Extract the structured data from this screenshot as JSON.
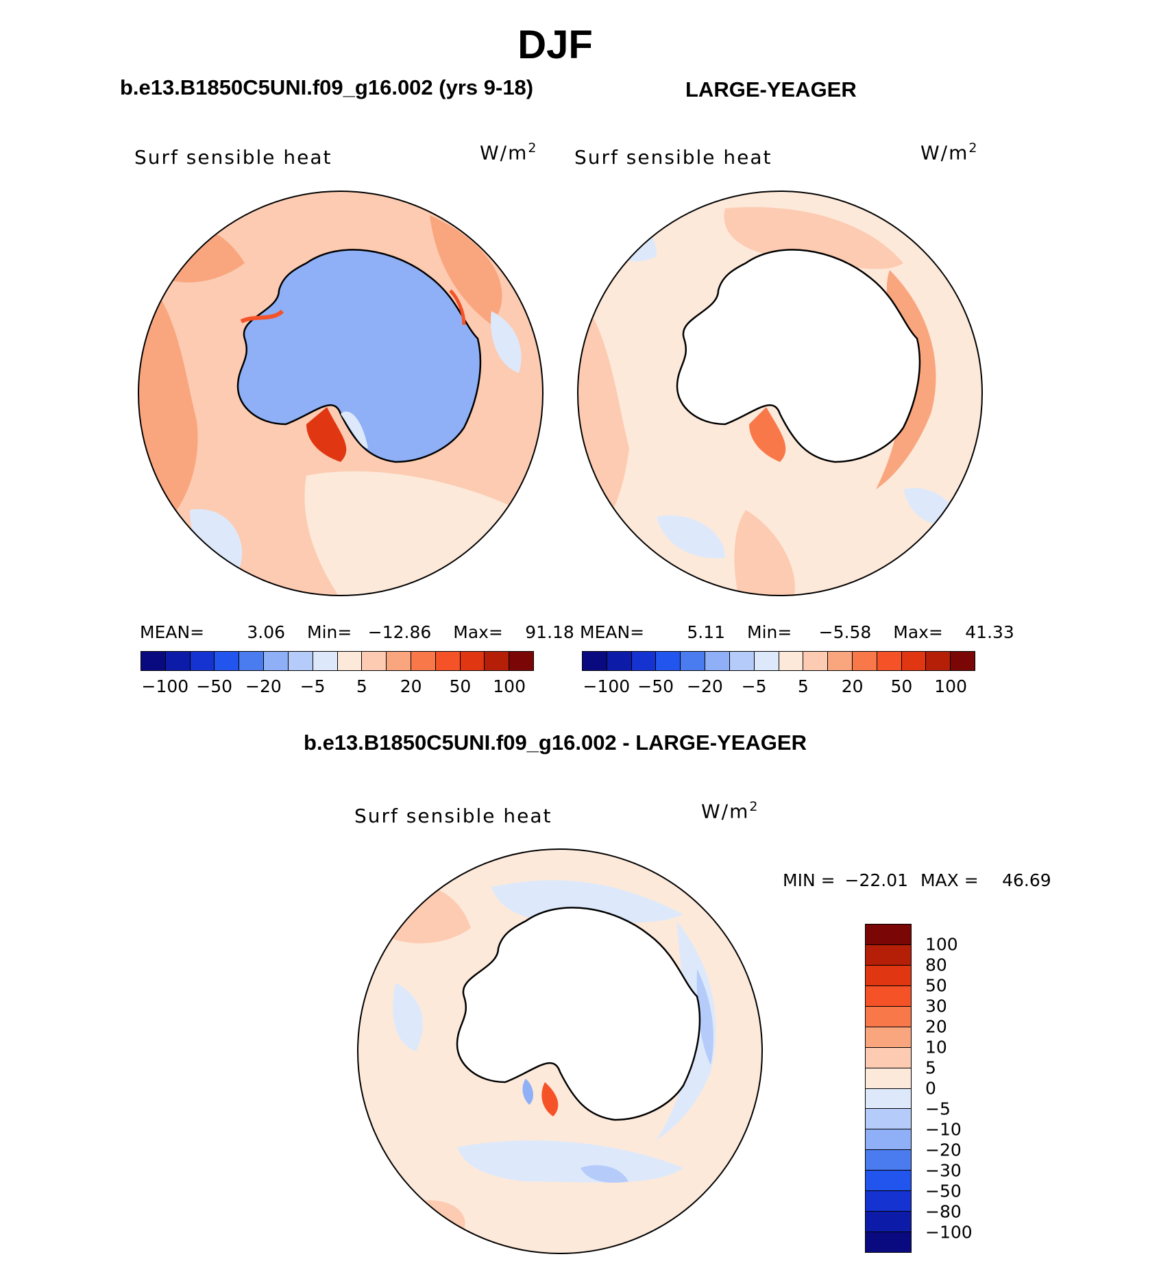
{
  "figure": {
    "title": "DJF",
    "variable": "Surf sensible heat",
    "units_base": "W/m",
    "units_exp": "2"
  },
  "panels": {
    "left": {
      "title": "b.e13.B1850C5UNI.f09_g16.002 (yrs 9-18)",
      "mean_label": "MEAN=",
      "mean": "3.06",
      "min_label": "Min=",
      "min": "−12.86",
      "max_label": "Max=",
      "max": "91.18"
    },
    "right": {
      "title": "LARGE-YEAGER",
      "mean_label": "MEAN=",
      "mean": "5.11",
      "min_label": "Min=",
      "min": "−5.58",
      "max_label": "Max=",
      "max": "41.33"
    },
    "diff": {
      "title": "b.e13.B1850C5UNI.f09_g16.002 - LARGE-YEAGER",
      "min_label": "MIN =",
      "min": "−22.01",
      "max_label": "MAX =",
      "max": "46.69"
    }
  },
  "colorbars": {
    "top_colors": [
      "#0a0a80",
      "#0d1ca8",
      "#1533d0",
      "#2155ee",
      "#4a7cf0",
      "#8fb0f6",
      "#b5ccfa",
      "#dde9fb",
      "#fde9da",
      "#fccbb2",
      "#f9a67f",
      "#f8784a",
      "#f55227",
      "#e03612",
      "#b51f08",
      "#7a0605"
    ],
    "top_labels": [
      "−100",
      "−50",
      "−20",
      "−5",
      "5",
      "20",
      "50",
      "100"
    ],
    "diff_colors": [
      "#7a0605",
      "#b51f08",
      "#e03612",
      "#f55227",
      "#f8784a",
      "#f9a67f",
      "#fccbb2",
      "#fde9da",
      "#dde9fb",
      "#b5ccfa",
      "#8fb0f6",
      "#4a7cf0",
      "#2155ee",
      "#1533d0",
      "#0d1ca8",
      "#0a0a80"
    ],
    "diff_labels": [
      "100",
      "80",
      "50",
      "30",
      "20",
      "10",
      "5",
      "0",
      "−5",
      "−10",
      "−20",
      "−30",
      "−50",
      "−80",
      "−100"
    ]
  }
}
